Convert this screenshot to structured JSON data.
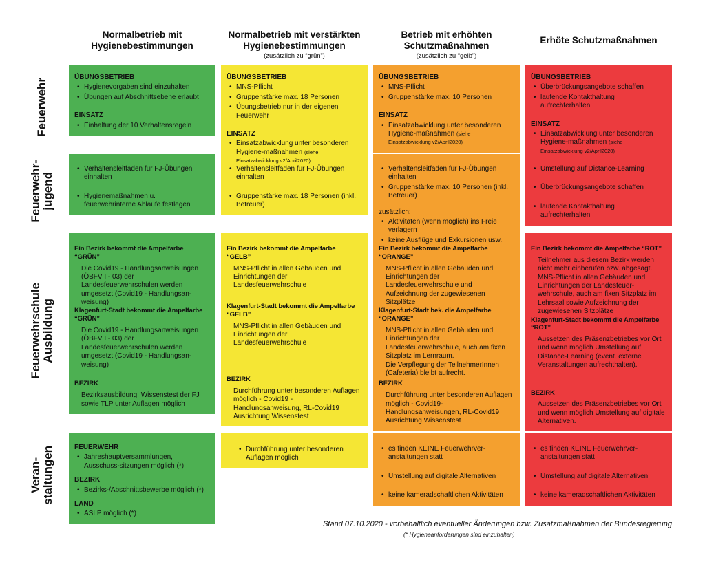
{
  "columns": [
    {
      "title": "Normalbetrieb mit\nHygienebestimmungen",
      "subtitle": ""
    },
    {
      "title": "Normalbetrieb mit verstärkten\nHygienebestimmungen",
      "subtitle": "(zusätzlich zu “grün”)"
    },
    {
      "title": "Betrieb mit erhöhten\nSchutzmaßnahmen",
      "subtitle": "(zusätzlich zu “gelb”)"
    },
    {
      "title": "Erhöte Schutzmaßnahmen",
      "subtitle": ""
    }
  ],
  "rows": [
    {
      "label": "Feuerwehr",
      "cells": [
        {
          "blocks": [
            {
              "h": "ÜBUNGSBETRIEB"
            },
            {
              "b": [
                "Hygienevorgaben sind einzuhalten",
                "Übungen auf Abschnittsebene erlaubt"
              ]
            },
            {
              "h": "EINSATZ"
            },
            {
              "b": [
                "Einhaltung der 10 Verhaltensregeln"
              ]
            }
          ]
        },
        {
          "blocks": [
            {
              "h": "ÜBUNGSBETRIEB"
            },
            {
              "b": [
                "MNS-Pflicht",
                "Gruppenstärke max. 18 Personen",
                "Übungsbetrieb nur in der eigenen Feuerwehr"
              ]
            },
            {
              "h": "EINSATZ"
            },
            {
              "b": [
                {
                  "text": "Einsatzabwicklung unter besonderen Hygiene-maßnahmen",
                  "small": "(siehe Einsatzabwicklung v2/April2020)"
                }
              ]
            }
          ]
        },
        {
          "blocks": [
            {
              "h": "ÜBUNGSBETRIEB"
            },
            {
              "b": [
                "MNS-Pflicht",
                "Gruppenstärke max. 10 Personen"
              ]
            },
            {
              "h": "EINSATZ"
            },
            {
              "b": [
                {
                  "text": "Einsatzabwicklung unter besonderen Hygiene-maßnahmen",
                  "small": "(siehe Einsatzabwicklung v2/April2020)"
                }
              ]
            }
          ]
        },
        {
          "blocks": [
            {
              "h": "ÜBUNGSBETRIEB"
            },
            {
              "b": [
                "Überbrückungsangebote schaffen",
                "laufende Kontakthaltung aufrechterhalten"
              ]
            },
            {
              "h": "EINSATZ"
            },
            {
              "b": [
                {
                  "text": "Einsatzabwicklung unter besonderen Hygiene-maßnahmen",
                  "small": "(siehe Einsatzabwicklung v2/April2020)"
                }
              ]
            }
          ]
        }
      ]
    },
    {
      "label": "Feuerwehr-\njugend",
      "cells": [
        {
          "blocks": [
            {
              "b": [
                "Verhaltensleitfaden für FJ-Übungen einhalten",
                "Hygienemaßnahmen u. feuerwehrinterne Abläufe festlegen"
              ],
              "spaced": true
            }
          ]
        },
        {
          "blocks": [
            {
              "b": [
                "Verhaltensleitfaden für FJ-Übungen einhalten",
                "Gruppenstärke max. 18 Personen (inkl. Betreuer)"
              ],
              "spaced": true
            }
          ]
        },
        {
          "blocks": [
            {
              "b": [
                "Verhaltensleitfaden für FJ-Übungen einhalten",
                "Gruppenstärke max. 10 Personen (inkl. Betreuer)"
              ]
            },
            {
              "t": "zusätzlich:"
            },
            {
              "b": [
                "Aktivitäten (wenn möglich) ins Freie verlagern",
                "keine Ausflüge und Exkursionen usw."
              ]
            }
          ]
        },
        {
          "blocks": [
            {
              "b": [
                "Umstellung auf Distance-Learning",
                "Überbrückungsangebote schaffen",
                "laufende Kontakthaltung aufrechterhalten"
              ],
              "spaced": true
            }
          ]
        }
      ]
    },
    {
      "label": "Feuerwehrschule\nAusbildung",
      "cells": [
        {
          "blocks": [
            {
              "grp": [
                {
                  "h": "Ein Bezirk bekommt die Ampelfarbe “GRÜN”"
                },
                {
                  "p": "Die Covid19 - Handlungsanweisungen (ÖBFV I - 03) der Landesfeuerwehrschulen werden umgesetzt (Covid19 - Handlungsan-weisung)"
                }
              ],
              "mh": 84
            },
            {
              "grp": [
                {
                  "h": "Klagenfurt-Stadt bekommt die Ampelfarbe “GRÜN”"
                },
                {
                  "p": "Die Covid19 - Handlungsanweisungen (ÖBFV I - 03) der Landesfeuerwehrschulen werden umgesetzt (Covid19 - Handlungsan-weisung)"
                }
              ],
              "mh": 106
            },
            {
              "grp": [
                {
                  "h": "BEZIRK"
                },
                {
                  "p": "Bezirksausbildung, Wissenstest der FJ sowie TLP unter Auflagen möglich"
                }
              ]
            }
          ]
        },
        {
          "blocks": [
            {
              "grp": [
                {
                  "h": "Ein Bezirk bekommt die Ampelfarbe “GELB”"
                },
                {
                  "p": "MNS-Pflicht in allen Gebäuden und Einrichtungen der Landesfeuerwehrschule"
                }
              ],
              "mh": 84
            },
            {
              "grp": [
                {
                  "h": "Klagenfurt-Stadt bekommt die Ampelfarbe “GELB”"
                },
                {
                  "p": "MNS-Pflicht in allen Gebäuden und Einrichtungen der Landesfeuerwehrschule"
                }
              ],
              "mh": 106
            },
            {
              "grp": [
                {
                  "h": "BEZIRK"
                },
                {
                  "p": "Durchführung unter besonderen Auflagen möglich - Covid19 - Handlungsanweisung, RL-Covid19 Ausrichtung Wissenstest"
                }
              ]
            }
          ]
        },
        {
          "blocks": [
            {
              "grp": [
                {
                  "h": "Ein Bezirk bekommt die Ampelfarbe “ORANGE”"
                },
                {
                  "p": "MNS-Pflicht in allen Gebäuden und Einrichtungen der Landesfeuerwehrschule und Aufzeichnung der zugewiesenen Sitzplätze"
                }
              ],
              "mh": 84
            },
            {
              "grp": [
                {
                  "h": "Klagenfurt-Stadt bek. die Ampelfarbe “ORANGE”"
                },
                {
                  "p": "MNS-Pflicht in allen Gebäuden und Einrichtungen der Landesfeuerwehrschule, auch am fixen Sitzplatz im Lernraum.\nDie Verpflegung der TeilnehmerInnen (Cafeteria) bleibt aufrecht."
                }
              ],
              "mh": 106
            },
            {
              "grp": [
                {
                  "h": "BEZIRK"
                },
                {
                  "p": "Durchführung unter besonderen Auflagen möglich - Covid19-Handlungsanweisungen, RL-Covid19 Ausrichtung Wissenstest"
                }
              ]
            }
          ]
        },
        {
          "blocks": [
            {
              "grp": [
                {
                  "h": "Ein Bezirk bekommt die Ampelfarbe “ROT”"
                },
                {
                  "p": "Teilnehmer aus diesem Bezirk werden nicht mehr einberufen bzw. abgesagt. MNS-Pflicht in allen Gebäuden und Einrichtungen der Landesfeuer-wehrschule, auch am fixen Sitzplatz im Lehrsaal sowie Aufzeichnung der zugewiesenen Sitzplätze"
                }
              ],
              "mh": 84
            },
            {
              "grp": [
                {
                  "h": "Klagenfurt-Stadt bekommt die Ampelfarbe “ROT”"
                },
                {
                  "p": "Aussetzen des Präsenzbetriebes vor Ort und wenn möglich Umstellung auf Distance-Learning (event. externe Veranstaltungen aufrechthalten)."
                }
              ],
              "mh": 106
            },
            {
              "grp": [
                {
                  "h": "BEZIRK"
                },
                {
                  "p": "Aussetzen des Präsenzbetriebes vor Ort und wenn möglich Umstellung auf digitale Alternativen."
                }
              ]
            }
          ]
        }
      ]
    },
    {
      "label": "Veran-\nstaltungen",
      "cells": [
        {
          "blocks": [
            {
              "h": "FEUERWEHR"
            },
            {
              "b": [
                "Jahreshauptversammlungen, Ausschuss-sitzungen möglich (*)"
              ]
            },
            {
              "h": "BEZIRK"
            },
            {
              "b": [
                "Bezirks-/Abschnittsbewerbe möglich (*)"
              ]
            },
            {
              "h": "LAND"
            },
            {
              "b": [
                "ASLP möglich (*)"
              ]
            }
          ]
        },
        {
          "blocks": [
            {
              "b": [
                "Durchführung unter besonderen Auflagen möglich"
              ]
            }
          ]
        },
        {
          "blocks": [
            {
              "b": [
                "es finden KEINE Feuerwehrver-anstaltungen statt",
                "Umstellung auf digitale Alternativen",
                "keine kameradschaftlichen Aktivitäten"
              ],
              "spaced": true
            }
          ]
        },
        {
          "blocks": [
            {
              "b": [
                "es finden KEINE Feuerwehrver-anstaltungen statt",
                "Umstellung auf digitale Alternativen",
                "keine kameradschaftlichen Aktivitäten"
              ],
              "spaced": true
            }
          ]
        }
      ]
    }
  ],
  "footer": {
    "line1": "Stand 07.10.2020 - vorbehaltlich eventueller Änderungen bzw. Zusatzmaßnahmen der Bundesregierung",
    "line2": "(* Hygieneanforderungen sind einzuhalten)"
  },
  "colors": {
    "green": "#4DB052",
    "yellow": "#F5E634",
    "orange": "#F4A02F",
    "red": "#EC3B3E",
    "text": "#111111",
    "background": "#FFFFFF"
  }
}
